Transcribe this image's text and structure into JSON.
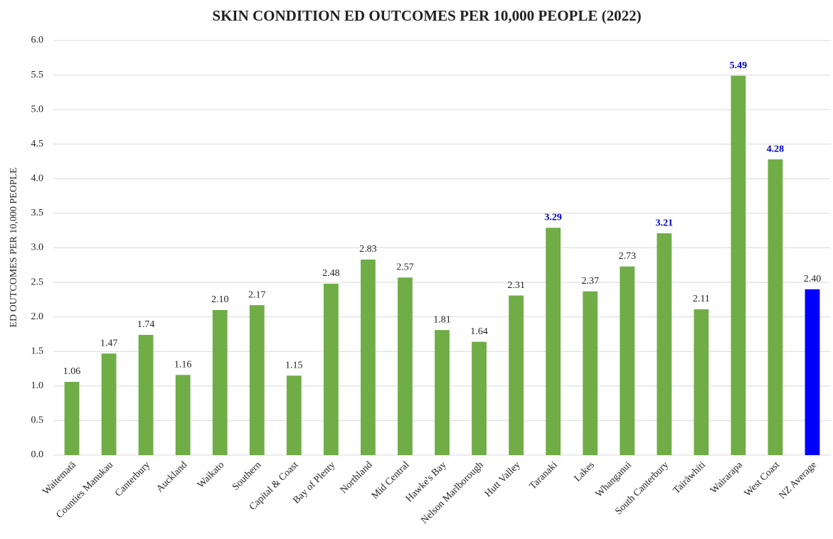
{
  "chart_data": {
    "type": "bar",
    "title": "SKIN CONDITION ED OUTCOMES PER 10,000 PEOPLE (2022)",
    "y_label": "ED OUTCOMES PER 10,000 PEOPLE",
    "categories": [
      "Waitematā",
      "Counties Manukau",
      "Canterbury",
      "Auckland",
      "Waikato",
      "Southern",
      "Capital & Coast",
      "Bay of Plenty",
      "Northland",
      "Mid Central",
      "Hawke's Bay",
      "Nelson Marlborough",
      "Hutt Valley",
      "Taranaki",
      "Lakes",
      "Whanganui",
      "South Canterbury",
      "Tairāwhiti",
      "Wairarapa",
      "West Coast",
      "NZ Average"
    ],
    "values": [
      1.06,
      1.47,
      1.74,
      1.16,
      2.1,
      2.17,
      1.15,
      2.48,
      2.83,
      2.57,
      1.81,
      1.64,
      2.31,
      3.29,
      2.37,
      2.73,
      3.21,
      2.11,
      5.49,
      4.28,
      2.4
    ],
    "value_labels": [
      "1.06",
      "1.47",
      "1.74",
      "1.16",
      "2.10",
      "2.17",
      "1.15",
      "2.48",
      "2.83",
      "2.57",
      "1.81",
      "1.64",
      "2.31",
      "3.29",
      "2.37",
      "2.73",
      "3.21",
      "2.11",
      "5.49",
      "4.28",
      "2.40"
    ],
    "colors": [
      "#70ad47",
      "#70ad47",
      "#70ad47",
      "#70ad47",
      "#70ad47",
      "#70ad47",
      "#70ad47",
      "#70ad47",
      "#70ad47",
      "#70ad47",
      "#70ad47",
      "#70ad47",
      "#70ad47",
      "#70ad47",
      "#70ad47",
      "#70ad47",
      "#70ad47",
      "#70ad47",
      "#70ad47",
      "#70ad47",
      "#0000ff"
    ],
    "label_colors": [
      "#222222",
      "#222222",
      "#222222",
      "#222222",
      "#222222",
      "#222222",
      "#222222",
      "#222222",
      "#222222",
      "#222222",
      "#222222",
      "#222222",
      "#222222",
      "#0000cc",
      "#222222",
      "#222222",
      "#0000cc",
      "#222222",
      "#0000cc",
      "#0000cc",
      "#222222"
    ],
    "ylim": [
      0,
      6
    ],
    "yticks": [
      {
        "value": 0,
        "label": "0.0"
      },
      {
        "value": 0.5,
        "label": "0.5"
      },
      {
        "value": 1,
        "label": "1.0"
      },
      {
        "value": 1.5,
        "label": "1.5"
      },
      {
        "value": 2,
        "label": "2.0"
      },
      {
        "value": 2.5,
        "label": "2.5"
      },
      {
        "value": 3,
        "label": "3.0"
      },
      {
        "value": 3.5,
        "label": "3.5"
      },
      {
        "value": 4,
        "label": "4.0"
      },
      {
        "value": 4.5,
        "label": "4.5"
      },
      {
        "value": 5,
        "label": "5.0"
      },
      {
        "value": 5.5,
        "label": "5.5"
      },
      {
        "value": 6,
        "label": "6.0"
      }
    ],
    "grid": true
  }
}
